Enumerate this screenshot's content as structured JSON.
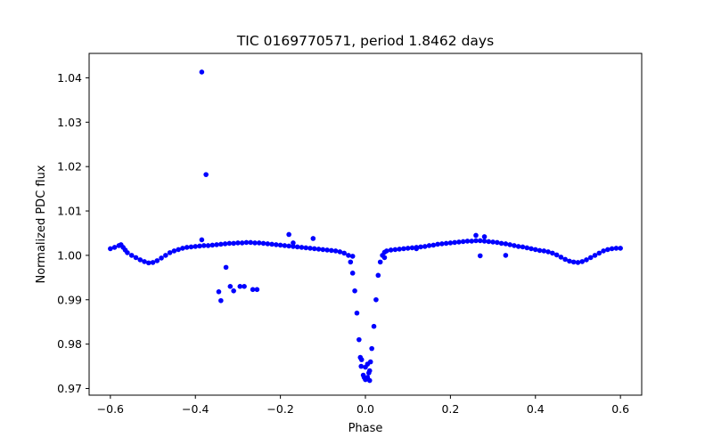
{
  "chart_data": {
    "type": "scatter",
    "title": "TIC 0169770571, period 1.8462 days",
    "xlabel": "Phase",
    "ylabel": "Normalized PDC flux",
    "xlim": [
      -0.65,
      0.65
    ],
    "ylim": [
      0.9685,
      1.0455
    ],
    "xticks": [
      -0.6,
      -0.4,
      -0.2,
      0.0,
      0.2,
      0.4,
      0.6
    ],
    "xtick_labels": [
      "−0.6",
      "−0.4",
      "−0.2",
      "0.0",
      "0.2",
      "0.4",
      "0.6"
    ],
    "yticks": [
      0.97,
      0.98,
      0.99,
      1.0,
      1.01,
      1.02,
      1.03,
      1.04
    ],
    "ytick_labels": [
      "0.97",
      "0.98",
      "0.99",
      "1.00",
      "1.01",
      "1.02",
      "1.03",
      "1.04"
    ],
    "grid": false,
    "legend": "none",
    "marker": "dot",
    "colors": {
      "points": "#0000ff",
      "axes": "#000000",
      "background": "#ffffff"
    },
    "series": [
      {
        "points": [
          [
            -0.6,
            1.0015
          ],
          [
            -0.59,
            1.0018
          ],
          [
            -0.58,
            1.0022
          ],
          [
            -0.575,
            1.0024
          ],
          [
            -0.57,
            1.0018
          ],
          [
            -0.565,
            1.0012
          ],
          [
            -0.56,
            1.0006
          ],
          [
            -0.55,
            1.0
          ],
          [
            -0.54,
            0.9995
          ],
          [
            -0.53,
            0.999
          ],
          [
            -0.52,
            0.9986
          ],
          [
            -0.51,
            0.9983
          ],
          [
            -0.5,
            0.9984
          ],
          [
            -0.49,
            0.9988
          ],
          [
            -0.48,
            0.9994
          ],
          [
            -0.47,
            1.0
          ],
          [
            -0.46,
            1.0006
          ],
          [
            -0.45,
            1.001
          ],
          [
            -0.44,
            1.0013
          ],
          [
            -0.43,
            1.0016
          ],
          [
            -0.42,
            1.0018
          ],
          [
            -0.41,
            1.0019
          ],
          [
            -0.4,
            1.002
          ],
          [
            -0.39,
            1.0021
          ],
          [
            -0.38,
            1.0022
          ],
          [
            -0.37,
            1.0022
          ],
          [
            -0.36,
            1.0023
          ],
          [
            -0.35,
            1.0024
          ],
          [
            -0.34,
            1.0025
          ],
          [
            -0.33,
            1.0026
          ],
          [
            -0.32,
            1.0027
          ],
          [
            -0.31,
            1.0027
          ],
          [
            -0.3,
            1.0028
          ],
          [
            -0.29,
            1.0028
          ],
          [
            -0.28,
            1.0029
          ],
          [
            -0.27,
            1.0029
          ],
          [
            -0.26,
            1.0028
          ],
          [
            -0.25,
            1.0028
          ],
          [
            -0.24,
            1.0027
          ],
          [
            -0.23,
            1.0026
          ],
          [
            -0.22,
            1.0025
          ],
          [
            -0.21,
            1.0024
          ],
          [
            -0.2,
            1.0023
          ],
          [
            -0.19,
            1.0022
          ],
          [
            -0.18,
            1.0021
          ],
          [
            -0.17,
            1.002
          ],
          [
            -0.16,
            1.0019
          ],
          [
            -0.15,
            1.0018
          ],
          [
            -0.14,
            1.0017
          ],
          [
            -0.13,
            1.0016
          ],
          [
            -0.12,
            1.0015
          ],
          [
            -0.11,
            1.0014
          ],
          [
            -0.1,
            1.0013
          ],
          [
            -0.09,
            1.0012
          ],
          [
            -0.08,
            1.0011
          ],
          [
            -0.07,
            1.001
          ],
          [
            -0.06,
            1.0008
          ],
          [
            -0.05,
            1.0005
          ],
          [
            -0.04,
            1.0
          ],
          [
            -0.035,
            0.9985
          ],
          [
            -0.03,
            0.996
          ],
          [
            -0.025,
            0.992
          ],
          [
            -0.02,
            0.987
          ],
          [
            -0.015,
            0.981
          ],
          [
            -0.012,
            0.977
          ],
          [
            -0.01,
            0.975
          ],
          [
            -0.005,
            0.973
          ],
          [
            0.0,
            0.972
          ],
          [
            0.005,
            0.9725
          ],
          [
            0.01,
            0.974
          ],
          [
            0.012,
            0.976
          ],
          [
            0.015,
            0.979
          ],
          [
            0.02,
            0.984
          ],
          [
            0.025,
            0.99
          ],
          [
            0.03,
            0.9955
          ],
          [
            0.035,
            0.9985
          ],
          [
            0.04,
            1.0
          ],
          [
            0.045,
            1.0007
          ],
          [
            0.05,
            1.001
          ],
          [
            0.06,
            1.0012
          ],
          [
            0.07,
            1.0013
          ],
          [
            0.08,
            1.0014
          ],
          [
            0.09,
            1.0015
          ],
          [
            0.1,
            1.0016
          ],
          [
            0.11,
            1.0017
          ],
          [
            0.12,
            1.0018
          ],
          [
            0.13,
            1.0019
          ],
          [
            0.14,
            1.002
          ],
          [
            0.15,
            1.0022
          ],
          [
            0.16,
            1.0023
          ],
          [
            0.17,
            1.0025
          ],
          [
            0.18,
            1.0026
          ],
          [
            0.19,
            1.0027
          ],
          [
            0.2,
            1.0028
          ],
          [
            0.21,
            1.0029
          ],
          [
            0.22,
            1.003
          ],
          [
            0.23,
            1.0031
          ],
          [
            0.24,
            1.0032
          ],
          [
            0.25,
            1.0032
          ],
          [
            0.26,
            1.0033
          ],
          [
            0.27,
            1.0033
          ],
          [
            0.28,
            1.0032
          ],
          [
            0.29,
            1.0031
          ],
          [
            0.3,
            1.003
          ],
          [
            0.31,
            1.0029
          ],
          [
            0.32,
            1.0027
          ],
          [
            0.33,
            1.0026
          ],
          [
            0.34,
            1.0024
          ],
          [
            0.35,
            1.0022
          ],
          [
            0.36,
            1.002
          ],
          [
            0.37,
            1.0019
          ],
          [
            0.38,
            1.0017
          ],
          [
            0.39,
            1.0015
          ],
          [
            0.4,
            1.0013
          ],
          [
            0.41,
            1.0011
          ],
          [
            0.42,
            1.001
          ],
          [
            0.43,
            1.0008
          ],
          [
            0.44,
            1.0005
          ],
          [
            0.45,
            1.0001
          ],
          [
            0.46,
            0.9996
          ],
          [
            0.47,
            0.9991
          ],
          [
            0.48,
            0.9987
          ],
          [
            0.49,
            0.9985
          ],
          [
            0.5,
            0.9984
          ],
          [
            0.51,
            0.9986
          ],
          [
            0.52,
            0.999
          ],
          [
            0.53,
            0.9995
          ],
          [
            0.54,
            1.0
          ],
          [
            0.55,
            1.0005
          ],
          [
            0.56,
            1.001
          ],
          [
            0.57,
            1.0013
          ],
          [
            0.58,
            1.0015
          ],
          [
            0.59,
            1.0016
          ],
          [
            0.6,
            1.0016
          ],
          [
            -0.385,
            1.0413
          ],
          [
            -0.375,
            1.0182
          ],
          [
            -0.385,
            1.0035
          ],
          [
            -0.328,
            0.9973
          ],
          [
            -0.345,
            0.9918
          ],
          [
            -0.34,
            0.9898
          ],
          [
            -0.318,
            0.993
          ],
          [
            -0.31,
            0.992
          ],
          [
            -0.295,
            0.993
          ],
          [
            -0.285,
            0.993
          ],
          [
            -0.265,
            0.9923
          ],
          [
            -0.255,
            0.9923
          ],
          [
            -0.18,
            1.0047
          ],
          [
            -0.123,
            1.0038
          ],
          [
            0.26,
            1.0045
          ],
          [
            0.28,
            1.0042
          ],
          [
            0.27,
            0.9999
          ],
          [
            0.045,
            0.9995
          ],
          [
            -0.03,
            0.9998
          ],
          [
            0.33,
            1.0
          ],
          [
            -0.17,
            1.0028
          ],
          [
            0.12,
            1.0015
          ],
          [
            -0.009,
            0.9765
          ],
          [
            0.005,
            0.9755
          ],
          [
            0.0,
            0.9748
          ],
          [
            0.008,
            0.9735
          ],
          [
            -0.003,
            0.9725
          ],
          [
            0.01,
            0.9718
          ]
        ]
      }
    ]
  }
}
